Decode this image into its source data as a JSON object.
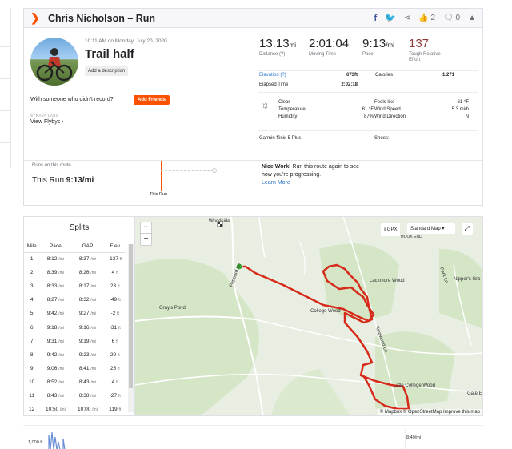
{
  "header": {
    "title": "Chris Nicholson – Run",
    "kudos_count": "2",
    "comment_count": "0"
  },
  "activity": {
    "date": "10:11 AM on Monday, July 20, 2020",
    "name": "Trail half",
    "add_description": "Add a description"
  },
  "social": {
    "prompt": "With someone who didn't record?",
    "add_friends": "Add Friends",
    "labs": "STRAVA LABS",
    "flybys": "View Flybys ›"
  },
  "stats": {
    "distance": {
      "value": "13.13",
      "unit": "mi",
      "label": "Distance (?)"
    },
    "moving_time": {
      "value": "2:01:04",
      "label": "Moving Time"
    },
    "pace": {
      "value": "9:13",
      "unit": "/mi",
      "label": "Pace"
    },
    "relative_effort": {
      "value": "137",
      "label": "Tough Relative Effort"
    }
  },
  "details": {
    "elevation_label": "Elevation (?)",
    "elevation_value": "673ft",
    "calories_label": "Calories",
    "calories_value": "1,271",
    "elapsed_label": "Elapsed Time",
    "elapsed_value": "2:02:18"
  },
  "weather": {
    "condition": "Clear",
    "temp_label": "Temperature",
    "temp_value": "61 °F",
    "humidity_label": "Humidity",
    "humidity_value": "87%",
    "feels_label": "Feels like",
    "feels_value": "61 °F",
    "wind_speed_label": "Wind Speed",
    "wind_speed_value": "5.3 mi/h",
    "wind_dir_label": "Wind Direction",
    "wind_dir_value": "N"
  },
  "gear": {
    "device": "Garmin fēnix 5 Plus",
    "shoes_label": "Shoes:",
    "shoes_value": "—"
  },
  "route": {
    "label": "Runs on this route",
    "this_run_label": "This Run",
    "this_run_value": "9:13/mi",
    "marker": "This Run",
    "nice_bold": "Nice Work!",
    "nice_text": " Run this route again to see how you're progressing.",
    "learn_more": "Learn More"
  },
  "splits": {
    "title": "Splits",
    "headers": [
      "Mile",
      "Pace",
      "GAP",
      "Elev"
    ],
    "rows": [
      {
        "mile": "1",
        "pace": "8:12",
        "gap": "8:37",
        "elev": "-137"
      },
      {
        "mile": "2",
        "pace": "8:39",
        "gap": "8:26",
        "elev": "4"
      },
      {
        "mile": "3",
        "pace": "8:33",
        "gap": "8:17",
        "elev": "23"
      },
      {
        "mile": "4",
        "pace": "8:27",
        "gap": "8:32",
        "elev": "-49"
      },
      {
        "mile": "5",
        "pace": "9:42",
        "gap": "9:27",
        "elev": "-2"
      },
      {
        "mile": "6",
        "pace": "9:18",
        "gap": "9:16",
        "elev": "-31"
      },
      {
        "mile": "7",
        "pace": "9:31",
        "gap": "9:19",
        "elev": "6"
      },
      {
        "mile": "8",
        "pace": "9:42",
        "gap": "9:23",
        "elev": "29"
      },
      {
        "mile": "9",
        "pace": "9:06",
        "gap": "8:41",
        "elev": "25"
      },
      {
        "mile": "10",
        "pace": "8:52",
        "gap": "8:43",
        "elev": "4"
      },
      {
        "mile": "11",
        "pace": "8:43",
        "gap": "8:38",
        "elev": "-27"
      },
      {
        "mile": "12",
        "pace": "10:50",
        "gap": "10:00",
        "elev": "119"
      }
    ],
    "pace_unit": "/mi",
    "elev_unit": "ft"
  },
  "map": {
    "gpx": "GPX",
    "style": "Standard Map",
    "attribution": "© Mapbox © OpenStreetMap Improve this map",
    "labels": [
      {
        "id": "woodside",
        "text": "Woodside"
      },
      {
        "id": "lackmore",
        "text": "Lackmore Wood"
      },
      {
        "id": "nippers",
        "text": "Nipper's Gro"
      },
      {
        "id": "college-wood",
        "text": "College Wood"
      },
      {
        "id": "grays-pond",
        "text": "Gray's Pond"
      },
      {
        "id": "little-college",
        "text": "Little College Wood"
      },
      {
        "id": "peppard",
        "text": "Peppard Ln"
      },
      {
        "id": "park-ln",
        "text": "Park Ln"
      },
      {
        "id": "hook-end",
        "text": "HOOK END"
      },
      {
        "id": "gate",
        "text": "Gate E"
      },
      {
        "id": "kingwood",
        "text": "Kingwood Ln"
      }
    ]
  },
  "elevation_chart": {
    "y_label": "1,000 ft",
    "pace_label": "8:40/mi"
  }
}
